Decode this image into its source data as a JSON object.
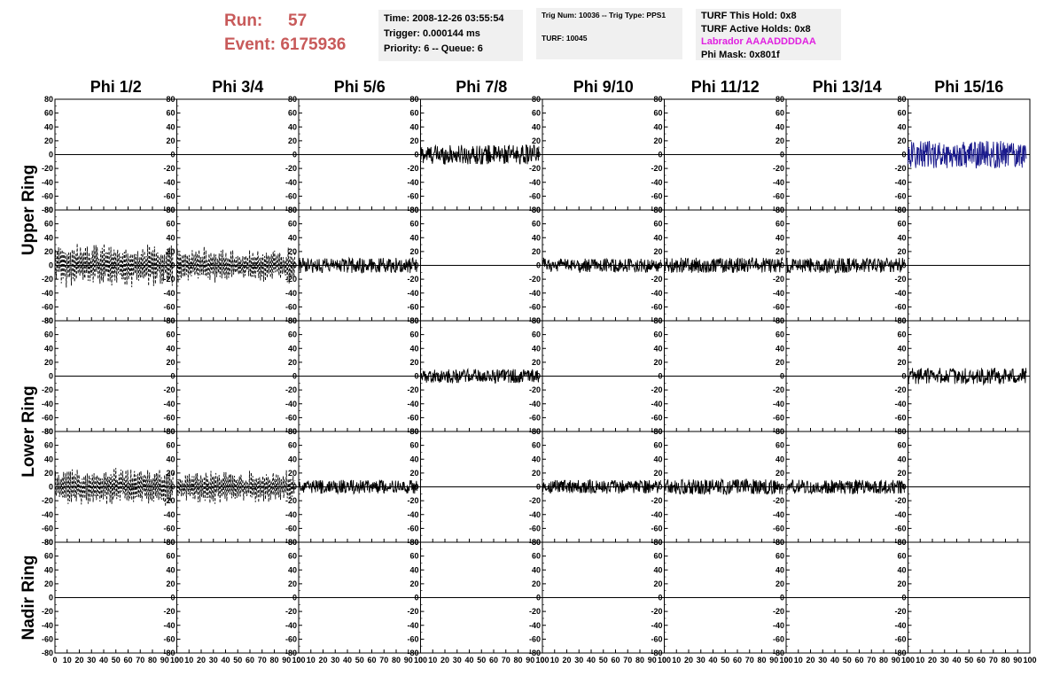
{
  "header": {
    "run_label": "Run:",
    "run_value": "57",
    "event_label": "Event:",
    "event_value": "6175936",
    "time": "Time: 2008-12-26 03:55:54",
    "trigger": "Trigger: 0.000144 ms",
    "priority": "Priority: 6 -- Queue: 6",
    "trig_num": "Trig Num: 10036 -- Trig Type: PPS1",
    "turf": "TURF: 10045",
    "turf_this_hold": "TURF This Hold: 0x8",
    "turf_active_holds": "TURF Active Holds: 0x8",
    "labrador": "Labrador AAAADDDDAA",
    "phi_mask": "Phi Mask: 0x801f",
    "labrador_color": "#e020e0",
    "run_color": "#c85a5a"
  },
  "chart_data": {
    "type": "line",
    "title": "",
    "columns": [
      "Phi 1/2",
      "Phi 3/4",
      "Phi 5/6",
      "Phi 7/8",
      "Phi 9/10",
      "Phi 11/12",
      "Phi 13/14",
      "Phi 15/16"
    ],
    "ring_labels": [
      "Upper Ring",
      "Lower Ring",
      "Nadir Ring"
    ],
    "ring_row_spans": [
      [
        0,
        1
      ],
      [
        2,
        3
      ],
      [
        4,
        4
      ]
    ],
    "xlim": [
      0,
      100
    ],
    "ylim": [
      -80,
      80
    ],
    "xticks": [
      0,
      10,
      20,
      30,
      40,
      50,
      60,
      70,
      80,
      90,
      100
    ],
    "yticks": [
      -80,
      -60,
      -40,
      -20,
      0,
      20,
      40,
      60,
      80
    ],
    "grid": false,
    "series_color_default": "#000000",
    "series_color_highlight": "#1a1a8c",
    "traces": [
      {
        "row": 0,
        "col": 3,
        "amp": 14,
        "start": 0,
        "end": 97,
        "style": "solid",
        "color": "#000000"
      },
      {
        "row": 0,
        "col": 7,
        "amp": 20,
        "start": 0,
        "end": 97,
        "style": "solid",
        "color": "#1a1a8c"
      },
      {
        "row": 1,
        "col": 0,
        "amp": 30,
        "start": 0,
        "end": 97,
        "style": "dashed",
        "color": "#000000"
      },
      {
        "row": 1,
        "col": 1,
        "amp": 24,
        "start": 0,
        "end": 97,
        "style": "dashed",
        "color": "#000000"
      },
      {
        "row": 1,
        "col": 2,
        "amp": 11,
        "start": 0,
        "end": 97,
        "style": "solid",
        "color": "#000000"
      },
      {
        "row": 1,
        "col": 4,
        "amp": 10,
        "start": 0,
        "end": 97,
        "style": "solid",
        "color": "#000000"
      },
      {
        "row": 1,
        "col": 5,
        "amp": 11,
        "start": 0,
        "end": 97,
        "style": "solid",
        "color": "#000000"
      },
      {
        "row": 1,
        "col": 6,
        "amp": 11,
        "start": 0,
        "end": 97,
        "style": "solid",
        "color": "#000000"
      },
      {
        "row": 2,
        "col": 3,
        "amp": 10,
        "start": 0,
        "end": 97,
        "style": "solid",
        "color": "#000000"
      },
      {
        "row": 2,
        "col": 7,
        "amp": 12,
        "start": 0,
        "end": 97,
        "style": "solid",
        "color": "#000000"
      },
      {
        "row": 3,
        "col": 0,
        "amp": 26,
        "start": 0,
        "end": 97,
        "style": "dashed",
        "color": "#000000"
      },
      {
        "row": 3,
        "col": 1,
        "amp": 22,
        "start": 0,
        "end": 97,
        "style": "dashed",
        "color": "#000000"
      },
      {
        "row": 3,
        "col": 2,
        "amp": 10,
        "start": 0,
        "end": 97,
        "style": "solid",
        "color": "#000000"
      },
      {
        "row": 3,
        "col": 4,
        "amp": 10,
        "start": 0,
        "end": 97,
        "style": "solid",
        "color": "#000000"
      },
      {
        "row": 3,
        "col": 5,
        "amp": 11,
        "start": 0,
        "end": 97,
        "style": "solid",
        "color": "#000000"
      },
      {
        "row": 3,
        "col": 6,
        "amp": 10,
        "start": 0,
        "end": 97,
        "style": "solid",
        "color": "#000000"
      }
    ]
  }
}
